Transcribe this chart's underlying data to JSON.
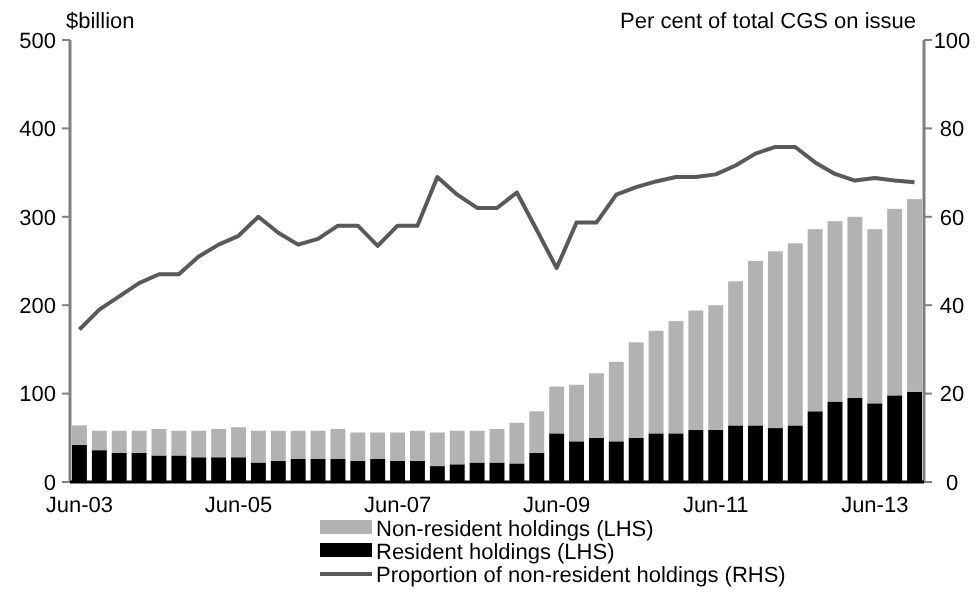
{
  "chart_data": {
    "type": "bar",
    "stacked": true,
    "categories": [
      "Jun-03",
      null,
      null,
      null,
      null,
      null,
      null,
      null,
      "Jun-05",
      null,
      null,
      null,
      null,
      null,
      null,
      null,
      "Jun-07",
      null,
      null,
      null,
      null,
      null,
      null,
      null,
      "Jun-09",
      null,
      null,
      null,
      null,
      null,
      null,
      null,
      "Jun-11",
      null,
      null,
      null,
      null,
      null,
      null,
      null,
      "Jun-13",
      null,
      null
    ],
    "ylabel": "$billion",
    "y2label": "Per cent of total CGS on issue",
    "ylim": [
      0,
      500
    ],
    "yticks": [
      0,
      100,
      200,
      300,
      400,
      500
    ],
    "y2lim": [
      0,
      100
    ],
    "y2ticks": [
      0,
      20,
      40,
      60,
      80,
      100
    ],
    "legend": "bottom",
    "grid": false,
    "series": [
      {
        "name": "Resident holdings (LHS)",
        "color": "#000000",
        "values": [
          42,
          36,
          33,
          33,
          30,
          30,
          28,
          28,
          28,
          22,
          24,
          26,
          26,
          26,
          24,
          26,
          24,
          24,
          18,
          20,
          22,
          22,
          21,
          33,
          55,
          46,
          50,
          46,
          50,
          55,
          55,
          59,
          59,
          64,
          64,
          61,
          64,
          80,
          91,
          95,
          89,
          98,
          102
        ]
      },
      {
        "name": "Non-resident holdings (LHS)",
        "color": "#b2b2b2",
        "values": [
          22,
          22,
          25,
          25,
          30,
          28,
          30,
          32,
          34,
          36,
          34,
          32,
          32,
          34,
          32,
          30,
          32,
          34,
          38,
          38,
          36,
          38,
          46,
          47,
          53,
          64,
          73,
          90,
          108,
          116,
          127,
          135,
          141,
          163,
          186,
          200,
          206,
          206,
          204,
          205,
          197,
          211,
          218
        ]
      },
      {
        "name": "Proportion of non-resident holdings (RHS)",
        "type": "line",
        "axis": "y2",
        "color": "#595959",
        "values": [
          34.5,
          39,
          42,
          45,
          47,
          47,
          51,
          53.7,
          55.7,
          60,
          56.4,
          53.7,
          55,
          58,
          58,
          53.4,
          58,
          58,
          69,
          65,
          62,
          62,
          65.5,
          57,
          48.4,
          58.7,
          58.7,
          65,
          66.7,
          68,
          69,
          69,
          69.6,
          71.6,
          74.3,
          75.8,
          75.8,
          72.3,
          69.7,
          68.2,
          68.8,
          68.2,
          67.8
        ]
      }
    ]
  }
}
